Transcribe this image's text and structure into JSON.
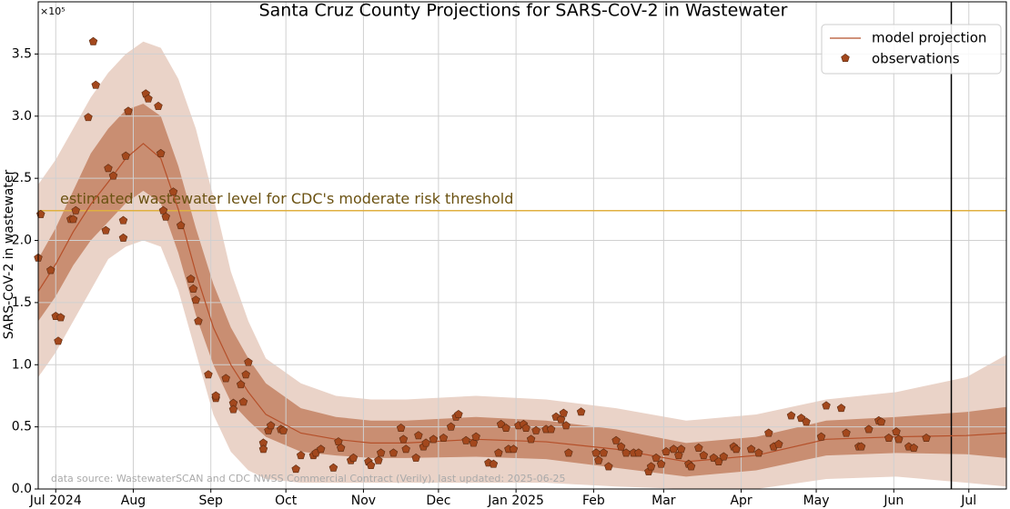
{
  "chart_data": {
    "type": "line",
    "title": "Santa Cruz County Projections for SARS-CoV-2 in Wastewater",
    "y_label": "SARS-CoV-2 in wastewater",
    "y_offset_label": "×10⁵",
    "source_note": "data source: WastewaterSCAN and CDC NWSS Commercial Contract (Verily), last updated: 2025-06-25",
    "xlim": [
      -7,
      380
    ],
    "ylim": [
      0,
      3.92
    ],
    "xticks": [
      {
        "value": 0,
        "label": "Jul 2024"
      },
      {
        "value": 31,
        "label": "Aug"
      },
      {
        "value": 62,
        "label": "Sep"
      },
      {
        "value": 92,
        "label": "Oct"
      },
      {
        "value": 123,
        "label": "Nov"
      },
      {
        "value": 153,
        "label": "Dec"
      },
      {
        "value": 184,
        "label": "Jan 2025"
      },
      {
        "value": 215,
        "label": "Feb"
      },
      {
        "value": 243,
        "label": "Mar"
      },
      {
        "value": 274,
        "label": "Apr"
      },
      {
        "value": 304,
        "label": "May"
      },
      {
        "value": 335,
        "label": "Jun"
      },
      {
        "value": 365,
        "label": "Jul"
      }
    ],
    "yticks": [
      {
        "value": 0,
        "label": "0.0"
      },
      0.5,
      {
        "value": 1,
        "label": "1.0"
      },
      1.5,
      {
        "value": 2,
        "label": "2.0"
      },
      2.5,
      {
        "value": 3,
        "label": "3.0"
      },
      3.5
    ],
    "grid": true,
    "legend_position": "upper right",
    "threshold": {
      "value": 2.24,
      "label": "estimated wastewater level for CDC's moderate risk threshold",
      "color": "#e0b040"
    },
    "vline": 358,
    "x": [
      -7,
      0,
      7,
      14,
      21,
      28,
      35,
      42,
      49,
      56,
      63,
      70,
      77,
      84,
      98,
      112,
      126,
      140,
      168,
      196,
      224,
      252,
      280,
      308,
      336,
      364,
      380
    ],
    "series": [
      {
        "name": "model projection",
        "color": "#b5502a",
        "values": [
          1.59,
          1.81,
          2.07,
          2.29,
          2.47,
          2.66,
          2.78,
          2.66,
          2.25,
          1.74,
          1.3,
          1.0,
          0.78,
          0.6,
          0.45,
          0.4,
          0.37,
          0.37,
          0.4,
          0.38,
          0.32,
          0.22,
          0.27,
          0.4,
          0.42,
          0.43,
          0.45
        ]
      }
    ],
    "bands": [
      {
        "color": "#ead3c8",
        "lower": [
          0.9,
          1.1,
          1.35,
          1.6,
          1.85,
          1.95,
          2.0,
          1.95,
          1.6,
          1.1,
          0.6,
          0.3,
          0.15,
          0.08,
          0.05,
          0.05,
          0.05,
          0.05,
          0.05,
          0.05,
          0.02,
          0,
          0,
          0.08,
          0.1,
          0.05,
          0.02
        ],
        "upper": [
          2.45,
          2.65,
          2.9,
          3.15,
          3.35,
          3.5,
          3.6,
          3.55,
          3.3,
          2.9,
          2.35,
          1.75,
          1.35,
          1.05,
          0.85,
          0.75,
          0.72,
          0.72,
          0.75,
          0.72,
          0.65,
          0.55,
          0.6,
          0.72,
          0.78,
          0.9,
          1.08
        ]
      },
      {
        "color": "#c98e72",
        "lower": [
          1.35,
          1.55,
          1.8,
          2.0,
          2.15,
          2.3,
          2.4,
          2.3,
          1.9,
          1.4,
          1.0,
          0.7,
          0.55,
          0.42,
          0.3,
          0.27,
          0.25,
          0.25,
          0.26,
          0.24,
          0.17,
          0.1,
          0.15,
          0.27,
          0.29,
          0.28,
          0.25
        ],
        "upper": [
          1.85,
          2.1,
          2.4,
          2.7,
          2.9,
          3.05,
          3.1,
          3.0,
          2.6,
          2.1,
          1.65,
          1.3,
          1.05,
          0.85,
          0.65,
          0.58,
          0.55,
          0.55,
          0.58,
          0.55,
          0.48,
          0.37,
          0.42,
          0.55,
          0.58,
          0.62,
          0.66
        ]
      }
    ],
    "observations": {
      "name": "observations",
      "color": "#a3481d",
      "x": [
        -7,
        -6,
        -2,
        0,
        2,
        1,
        6,
        7,
        8,
        13,
        15,
        16,
        20,
        21,
        23,
        27,
        27,
        28,
        29,
        36,
        37,
        41,
        42,
        43,
        44,
        47,
        50,
        54,
        55,
        56,
        57,
        61,
        64,
        64,
        68,
        71,
        71,
        74,
        75,
        77,
        76,
        83,
        83,
        85,
        86,
        90,
        91,
        96,
        98,
        103,
        104,
        106,
        111,
        113,
        114,
        118,
        119,
        125,
        126,
        129,
        130,
        135,
        138,
        139,
        140,
        144,
        145,
        147,
        148,
        151,
        155,
        158,
        160,
        161,
        164,
        167,
        168,
        173,
        175,
        177,
        178,
        180,
        181,
        183,
        185,
        187,
        188,
        190,
        192,
        196,
        198,
        200,
        202,
        203,
        204,
        205,
        210,
        216,
        217,
        219,
        221,
        224,
        226,
        228,
        231,
        233,
        237,
        238,
        240,
        242,
        244,
        247,
        249,
        250,
        253,
        254,
        257,
        259,
        263,
        265,
        267,
        271,
        272,
        278,
        281,
        285,
        287,
        289,
        294,
        298,
        300,
        308,
        314,
        306,
        316,
        321,
        322,
        325,
        329,
        330,
        333,
        336,
        337,
        341,
        343,
        348
      ],
      "values": [
        1.86,
        2.21,
        1.76,
        1.39,
        1.38,
        1.19,
        2.17,
        2.17,
        2.24,
        2.99,
        3.6,
        3.25,
        2.08,
        2.58,
        2.52,
        2.02,
        2.16,
        2.68,
        3.04,
        3.18,
        3.14,
        3.08,
        2.7,
        2.24,
        2.19,
        2.39,
        2.12,
        1.69,
        1.61,
        1.52,
        1.35,
        0.92,
        0.73,
        0.75,
        0.89,
        0.69,
        0.64,
        0.84,
        0.7,
        1.02,
        0.92,
        0.37,
        0.32,
        0.47,
        0.51,
        0.48,
        0.47,
        0.16,
        0.27,
        0.27,
        0.29,
        0.32,
        0.17,
        0.38,
        0.33,
        0.23,
        0.25,
        0.22,
        0.19,
        0.23,
        0.29,
        0.29,
        0.49,
        0.4,
        0.32,
        0.25,
        0.43,
        0.34,
        0.37,
        0.4,
        0.41,
        0.5,
        0.58,
        0.6,
        0.39,
        0.37,
        0.42,
        0.21,
        0.2,
        0.29,
        0.52,
        0.49,
        0.32,
        0.32,
        0.51,
        0.52,
        0.49,
        0.4,
        0.47,
        0.48,
        0.48,
        0.58,
        0.56,
        0.61,
        0.51,
        0.29,
        0.62,
        0.29,
        0.23,
        0.29,
        0.18,
        0.39,
        0.34,
        0.29,
        0.29,
        0.29,
        0.14,
        0.18,
        0.25,
        0.2,
        0.3,
        0.32,
        0.27,
        0.32,
        0.2,
        0.18,
        0.33,
        0.27,
        0.25,
        0.22,
        0.26,
        0.34,
        0.32,
        0.32,
        0.29,
        0.45,
        0.34,
        0.36,
        0.59,
        0.57,
        0.54,
        0.67,
        0.65,
        0.42,
        0.45,
        0.34,
        0.34,
        0.48,
        0.55,
        0.54,
        0.41,
        0.46,
        0.4,
        0.34,
        0.33,
        0.41
      ]
    }
  }
}
